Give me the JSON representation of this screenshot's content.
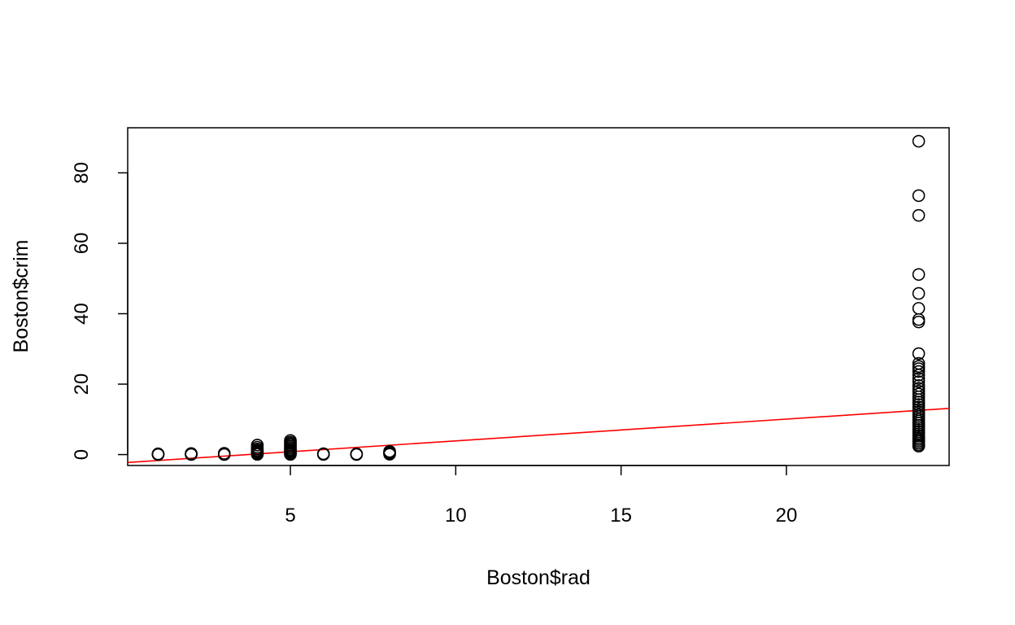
{
  "chart_data": {
    "type": "scatter",
    "title": "",
    "xlabel": "Boston$rad",
    "ylabel": "Boston$crim",
    "xlim": [
      0.08,
      24.92
    ],
    "ylim": [
      -3.1,
      92.8
    ],
    "xticks": [
      5,
      10,
      15,
      20
    ],
    "yticks": [
      0,
      20,
      40,
      60,
      80
    ],
    "grid": false,
    "legend": "none",
    "point_color": "#000000",
    "line_color": "#ff0000",
    "regression_line": {
      "intercept": -2.29,
      "slope": 0.618
    },
    "points": [
      {
        "x": 1,
        "y": 0.01
      },
      {
        "x": 1,
        "y": 0.06
      },
      {
        "x": 1,
        "y": 0.13
      },
      {
        "x": 1,
        "y": 0.2
      },
      {
        "x": 2,
        "y": 0.02
      },
      {
        "x": 2,
        "y": 0.1
      },
      {
        "x": 2,
        "y": 0.2
      },
      {
        "x": 2,
        "y": 0.3
      },
      {
        "x": 3,
        "y": 0.03
      },
      {
        "x": 3,
        "y": 0.1
      },
      {
        "x": 3,
        "y": 0.2
      },
      {
        "x": 3,
        "y": 0.35
      },
      {
        "x": 4,
        "y": 0.05
      },
      {
        "x": 4,
        "y": 0.3
      },
      {
        "x": 4,
        "y": 0.6
      },
      {
        "x": 4,
        "y": 0.9
      },
      {
        "x": 4,
        "y": 1.2
      },
      {
        "x": 4,
        "y": 1.6
      },
      {
        "x": 4,
        "y": 2.1
      },
      {
        "x": 4,
        "y": 2.7
      },
      {
        "x": 5,
        "y": 0.05
      },
      {
        "x": 5,
        "y": 0.3
      },
      {
        "x": 5,
        "y": 0.6
      },
      {
        "x": 5,
        "y": 0.9
      },
      {
        "x": 5,
        "y": 1.2
      },
      {
        "x": 5,
        "y": 1.5
      },
      {
        "x": 5,
        "y": 1.9
      },
      {
        "x": 5,
        "y": 2.3
      },
      {
        "x": 5,
        "y": 2.7
      },
      {
        "x": 5,
        "y": 3.1
      },
      {
        "x": 5,
        "y": 3.5
      },
      {
        "x": 5,
        "y": 4.0
      },
      {
        "x": 6,
        "y": 0.05
      },
      {
        "x": 6,
        "y": 0.15
      },
      {
        "x": 6,
        "y": 0.25
      },
      {
        "x": 7,
        "y": 0.02
      },
      {
        "x": 7,
        "y": 0.1
      },
      {
        "x": 7,
        "y": 0.2
      },
      {
        "x": 8,
        "y": 0.1
      },
      {
        "x": 8,
        "y": 0.35
      },
      {
        "x": 8,
        "y": 0.6
      },
      {
        "x": 8,
        "y": 0.9
      },
      {
        "x": 24,
        "y": 88.98
      },
      {
        "x": 24,
        "y": 73.53
      },
      {
        "x": 24,
        "y": 67.92
      },
      {
        "x": 24,
        "y": 51.14
      },
      {
        "x": 24,
        "y": 45.75
      },
      {
        "x": 24,
        "y": 41.53
      },
      {
        "x": 24,
        "y": 38.35
      },
      {
        "x": 24,
        "y": 37.66
      },
      {
        "x": 24,
        "y": 28.66
      },
      {
        "x": 24,
        "y": 25.9
      },
      {
        "x": 24,
        "y": 25.05
      },
      {
        "x": 24,
        "y": 24.39
      },
      {
        "x": 24,
        "y": 23.6
      },
      {
        "x": 24,
        "y": 22.6
      },
      {
        "x": 24,
        "y": 21.6
      },
      {
        "x": 24,
        "y": 20.7
      },
      {
        "x": 24,
        "y": 19.6
      },
      {
        "x": 24,
        "y": 18.8
      },
      {
        "x": 24,
        "y": 18.0
      },
      {
        "x": 24,
        "y": 17.2
      },
      {
        "x": 24,
        "y": 16.4
      },
      {
        "x": 24,
        "y": 15.6
      },
      {
        "x": 24,
        "y": 14.9
      },
      {
        "x": 24,
        "y": 14.2
      },
      {
        "x": 24,
        "y": 13.5
      },
      {
        "x": 24,
        "y": 12.8
      },
      {
        "x": 24,
        "y": 12.1
      },
      {
        "x": 24,
        "y": 11.4
      },
      {
        "x": 24,
        "y": 10.8
      },
      {
        "x": 24,
        "y": 10.1
      },
      {
        "x": 24,
        "y": 9.5
      },
      {
        "x": 24,
        "y": 8.9
      },
      {
        "x": 24,
        "y": 8.3
      },
      {
        "x": 24,
        "y": 7.7
      },
      {
        "x": 24,
        "y": 7.1
      },
      {
        "x": 24,
        "y": 6.5
      },
      {
        "x": 24,
        "y": 5.9
      },
      {
        "x": 24,
        "y": 5.3
      },
      {
        "x": 24,
        "y": 4.8
      },
      {
        "x": 24,
        "y": 4.3
      },
      {
        "x": 24,
        "y": 3.8
      },
      {
        "x": 24,
        "y": 3.3
      },
      {
        "x": 24,
        "y": 2.8
      },
      {
        "x": 24,
        "y": 2.4
      }
    ]
  }
}
